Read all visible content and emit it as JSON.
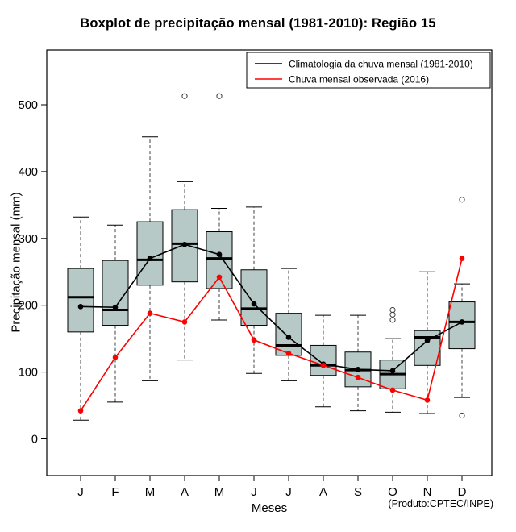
{
  "chart_data": {
    "type": "boxplot",
    "title": "Boxplot de precipitação mensal (1981-2010): Região 15",
    "xlabel": "Meses",
    "ylabel": "Precipitação mensal (mm)",
    "footnote": "(Produto:CPTEC/INPE)",
    "categories": [
      "J",
      "F",
      "M",
      "A",
      "M",
      "J",
      "J",
      "A",
      "S",
      "O",
      "N",
      "D"
    ],
    "yticks": [
      0,
      100,
      200,
      300,
      400,
      500
    ],
    "ylim": [
      -55,
      582
    ],
    "grid": false,
    "legend_position": "top-right",
    "box_fill": "#b6c9c6",
    "boxes": [
      {
        "low": 28,
        "q1": 160,
        "median": 212,
        "q3": 255,
        "high": 332,
        "outliers": []
      },
      {
        "low": 55,
        "q1": 170,
        "median": 193,
        "q3": 267,
        "high": 320,
        "outliers": []
      },
      {
        "low": 87,
        "q1": 230,
        "median": 268,
        "q3": 325,
        "high": 452,
        "outliers": []
      },
      {
        "low": 118,
        "q1": 235,
        "median": 292,
        "q3": 343,
        "high": 385,
        "outliers": [
          513
        ]
      },
      {
        "low": 178,
        "q1": 225,
        "median": 270,
        "q3": 310,
        "high": 345,
        "outliers": [
          513
        ]
      },
      {
        "low": 98,
        "q1": 170,
        "median": 195,
        "q3": 253,
        "high": 347,
        "outliers": []
      },
      {
        "low": 87,
        "q1": 125,
        "median": 140,
        "q3": 188,
        "high": 255,
        "outliers": []
      },
      {
        "low": 48,
        "q1": 95,
        "median": 110,
        "q3": 140,
        "high": 185,
        "outliers": []
      },
      {
        "low": 42,
        "q1": 78,
        "median": 103,
        "q3": 130,
        "high": 185,
        "outliers": []
      },
      {
        "low": 40,
        "q1": 75,
        "median": 97,
        "q3": 118,
        "high": 150,
        "outliers": [
          178,
          186,
          193
        ]
      },
      {
        "low": 38,
        "q1": 110,
        "median": 152,
        "q3": 162,
        "high": 250,
        "outliers": []
      },
      {
        "low": 62,
        "q1": 135,
        "median": 175,
        "q3": 205,
        "high": 232,
        "outliers": [
          358,
          35
        ]
      }
    ],
    "series": [
      {
        "name": "Climatologia da chuva mensal (1981-2010)",
        "color": "#000000",
        "values": [
          198,
          197,
          270,
          291,
          276,
          202,
          152,
          112,
          104,
          102,
          147,
          175
        ]
      },
      {
        "name": "Chuva mensal observada (2016)",
        "color": "#ff0000",
        "values": [
          42,
          122,
          188,
          175,
          242,
          148,
          128,
          110,
          92,
          73,
          58,
          270
        ]
      }
    ]
  }
}
